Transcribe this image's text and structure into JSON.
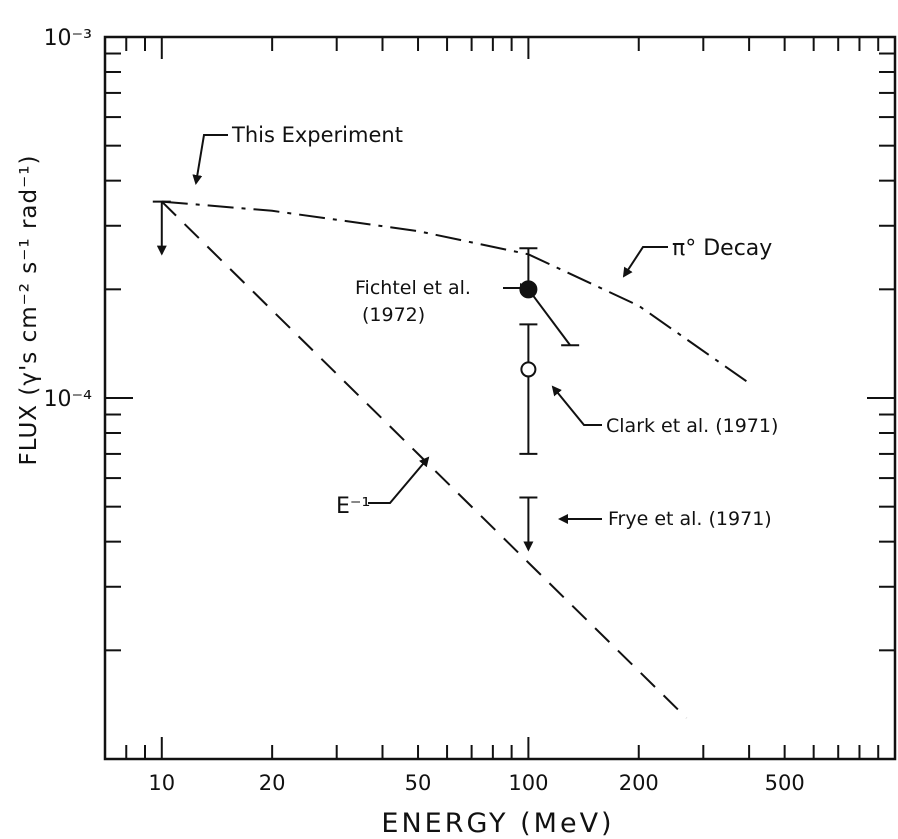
{
  "chart_data": {
    "type": "scatter",
    "xlabel": "ENERGY (MeV)",
    "ylabel": "FLUX (γ's cm⁻² s⁻¹ rad⁻¹)",
    "x_scale": "log",
    "y_scale": "log",
    "xlim": [
      7,
      1000
    ],
    "ylim": [
      1e-05,
      0.001
    ],
    "x_tick_labels": [
      "10",
      "20",
      "50",
      "100",
      "200",
      "500"
    ],
    "x_tick_values": [
      10,
      20,
      50,
      100,
      200,
      500
    ],
    "y_tick_labels": [
      "10⁻³",
      "10⁻⁴"
    ],
    "y_tick_values": [
      0.001,
      0.0001
    ],
    "grid": false,
    "series": [
      {
        "name": "This Experiment",
        "marker": "upper-limit",
        "points": [
          {
            "x": 10,
            "y": 0.00035
          }
        ]
      },
      {
        "name": "Fichtel et al. (1972)",
        "marker": "filled-circle",
        "points": [
          {
            "x": 100,
            "y": 0.0002,
            "y_err_high": 0.00026,
            "x_high": 130,
            "y_at_x_high": 0.00014
          }
        ]
      },
      {
        "name": "Clark et al. (1971)",
        "marker": "open-circle",
        "points": [
          {
            "x": 100,
            "y": 0.00012,
            "y_err_low": 7e-05,
            "y_err_high": 0.00016
          }
        ]
      },
      {
        "name": "Frye et al. (1971)",
        "marker": "upper-limit",
        "points": [
          {
            "x": 100,
            "y": 5.3e-05
          }
        ]
      }
    ],
    "curves": [
      {
        "name": "π° Decay",
        "style": "dash-dot",
        "points": [
          {
            "x": 10,
            "y": 0.00035
          },
          {
            "x": 20,
            "y": 0.00033
          },
          {
            "x": 50,
            "y": 0.00029
          },
          {
            "x": 100,
            "y": 0.00025
          },
          {
            "x": 200,
            "y": 0.00018
          },
          {
            "x": 400,
            "y": 0.00011
          }
        ]
      },
      {
        "name": "E⁻¹",
        "style": "dashed",
        "points": [
          {
            "x": 10,
            "y": 0.00035
          },
          {
            "x": 20,
            "y": 0.000175
          },
          {
            "x": 50,
            "y": 7e-05
          },
          {
            "x": 100,
            "y": 3.5e-05
          },
          {
            "x": 270,
            "y": 1.3e-05
          }
        ]
      }
    ],
    "annotations": {
      "this_experiment": "This Experiment",
      "fichtel_line1": "Fichtel et al.",
      "fichtel_line2": "(1972)",
      "clark": "Clark et al. (1971)",
      "frye": "Frye et al. (1971)",
      "pi_decay": "π° Decay",
      "e_inverse": "E⁻¹"
    }
  }
}
